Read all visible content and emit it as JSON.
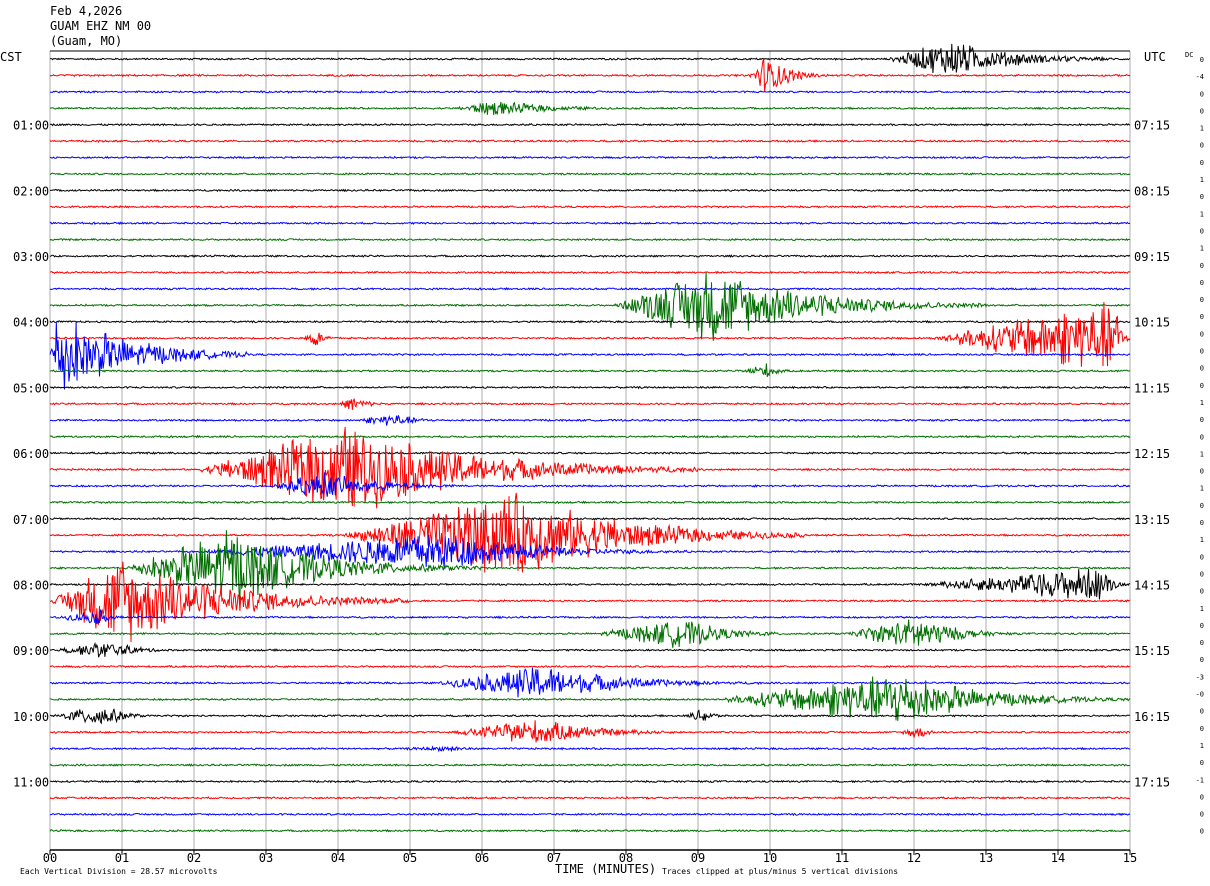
{
  "header": {
    "date": "Feb 4,2026",
    "station": "GUAM EHZ NM 00",
    "location": "(Guam, MO)"
  },
  "left_tz": "CST",
  "right_tz": "UTC",
  "dc_label": "DC",
  "left_hour_labels": [
    "01:00",
    "02:00",
    "03:00",
    "04:00",
    "05:00",
    "06:00",
    "07:00",
    "08:00",
    "09:00",
    "10:00",
    "11:00"
  ],
  "right_hour_labels": [
    "07:15",
    "08:15",
    "09:15",
    "10:15",
    "11:15",
    "12:15",
    "13:15",
    "14:15",
    "15:15",
    "16:15",
    "17:15"
  ],
  "dc_values": [
    "0",
    "-4",
    "0",
    "0",
    "1",
    "0",
    "0",
    "1",
    "0",
    "1",
    "0",
    "1",
    "0",
    "0",
    "0",
    "0",
    "0",
    "0",
    "0",
    "0",
    "1",
    "0",
    "0",
    "1",
    "0",
    "1",
    "0",
    "0",
    "1",
    "0",
    "0",
    "0",
    "1",
    "0",
    "0",
    "0",
    "-3",
    "-0",
    "0",
    "0",
    "1",
    "0",
    "-1",
    "0",
    "0",
    "0"
  ],
  "footer": {
    "scale_note": "Each Vertical Division =   28.57 microvolts",
    "x_axis_label": "TIME (MINUTES)",
    "clip_note": "Traces clipped at plus/minus 5 vertical divisions"
  },
  "colors": {
    "cycle": [
      "#000000",
      "#ff0000",
      "#0000ff",
      "#007000"
    ],
    "grid": "#888888"
  },
  "chart_data": {
    "type": "helicorder",
    "x_unit": "minutes",
    "x_range": [
      0,
      15
    ],
    "x_ticks": [
      "00",
      "01",
      "02",
      "03",
      "04",
      "05",
      "06",
      "07",
      "08",
      "09",
      "10",
      "11",
      "12",
      "13",
      "14",
      "15"
    ],
    "trace_count": 48,
    "trace_interval_minutes": 15,
    "events": [
      {
        "trace": 0,
        "start": 11.6,
        "peak": 12.5,
        "end": 15.0,
        "amp": 1.3
      },
      {
        "trace": 1,
        "start": 9.7,
        "peak": 9.95,
        "end": 10.8,
        "amp": 1.5
      },
      {
        "trace": 3,
        "start": 5.6,
        "peak": 6.1,
        "end": 8.5,
        "amp": 0.55
      },
      {
        "trace": 15,
        "start": 7.8,
        "peak": 9.2,
        "end": 13.0,
        "amp": 2.5
      },
      {
        "trace": 17,
        "start": 3.5,
        "peak": 3.7,
        "end": 4.0,
        "amp": 0.7
      },
      {
        "trace": 17,
        "start": 12.2,
        "peak": 14.8,
        "end": 15.0,
        "amp": 2.6
      },
      {
        "trace": 18,
        "start": 0.0,
        "peak": 0.1,
        "end": 2.8,
        "amp": 3.0
      },
      {
        "trace": 19,
        "start": 9.6,
        "peak": 9.95,
        "end": 10.4,
        "amp": 0.55
      },
      {
        "trace": 21,
        "start": 4.0,
        "peak": 4.2,
        "end": 4.8,
        "amp": 0.55
      },
      {
        "trace": 22,
        "start": 4.2,
        "peak": 4.8,
        "end": 5.6,
        "amp": 0.5
      },
      {
        "trace": 25,
        "start": 2.0,
        "peak": 4.2,
        "end": 9.0,
        "amp": 3.0
      },
      {
        "trace": 26,
        "start": 3.0,
        "peak": 3.8,
        "end": 6.0,
        "amp": 0.9
      },
      {
        "trace": 29,
        "start": 4.0,
        "peak": 6.5,
        "end": 10.5,
        "amp": 3.0
      },
      {
        "trace": 30,
        "start": 2.0,
        "peak": 5.5,
        "end": 9.0,
        "amp": 1.3
      },
      {
        "trace": 31,
        "start": 1.0,
        "peak": 2.5,
        "end": 6.0,
        "amp": 2.5
      },
      {
        "trace": 32,
        "start": 12.0,
        "peak": 14.6,
        "end": 15.0,
        "amp": 1.2
      },
      {
        "trace": 33,
        "start": 0.0,
        "peak": 1.0,
        "end": 5.0,
        "amp": 3.0
      },
      {
        "trace": 34,
        "start": 0.0,
        "peak": 0.7,
        "end": 1.2,
        "amp": 0.5
      },
      {
        "trace": 35,
        "start": 7.5,
        "peak": 8.8,
        "end": 10.5,
        "amp": 1.0
      },
      {
        "trace": 35,
        "start": 11.0,
        "peak": 12.1,
        "end": 13.5,
        "amp": 1.2
      },
      {
        "trace": 36,
        "start": 0.0,
        "peak": 0.8,
        "end": 2.0,
        "amp": 0.6
      },
      {
        "trace": 38,
        "start": 5.3,
        "peak": 6.8,
        "end": 10.0,
        "amp": 1.2
      },
      {
        "trace": 39,
        "start": 9.2,
        "peak": 11.8,
        "end": 15.0,
        "amp": 1.8
      },
      {
        "trace": 40,
        "start": 0.0,
        "peak": 0.75,
        "end": 1.5,
        "amp": 0.8
      },
      {
        "trace": 40,
        "start": 8.8,
        "peak": 9.1,
        "end": 9.5,
        "amp": 0.5
      },
      {
        "trace": 41,
        "start": 5.5,
        "peak": 6.8,
        "end": 9.0,
        "amp": 0.9
      },
      {
        "trace": 41,
        "start": 11.8,
        "peak": 12.05,
        "end": 12.4,
        "amp": 0.6
      },
      {
        "trace": 42,
        "start": 4.6,
        "peak": 5.6,
        "end": 6.3,
        "amp": 0.2
      }
    ]
  }
}
